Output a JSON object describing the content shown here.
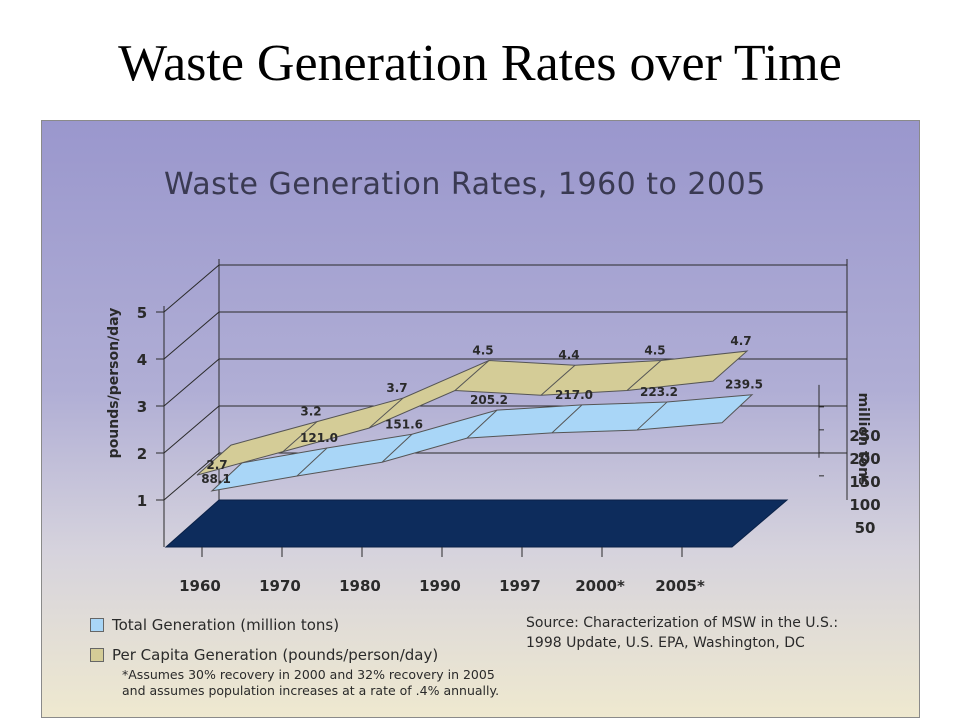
{
  "slide_title": "Waste Generation Rates over Time",
  "chart_data": {
    "type": "area",
    "title": "Waste Generation Rates, 1960 to 2005",
    "categories": [
      "1960",
      "1970",
      "1980",
      "1990",
      "1997",
      "2000*",
      "2005*"
    ],
    "series": [
      {
        "name": "Total Generation (million tons)",
        "axis": "right",
        "values": [
          88.1,
          121.0,
          151.6,
          205.2,
          217.0,
          223.2,
          239.5
        ],
        "labels": [
          "88.1",
          "121.0",
          "151.6",
          "205.2",
          "217.0",
          "223.2",
          "239.5"
        ],
        "color": "#a9d6f7"
      },
      {
        "name": "Per Capita Generation (pounds/person/day)",
        "axis": "left",
        "values": [
          2.7,
          3.2,
          3.7,
          4.5,
          4.4,
          4.5,
          4.7
        ],
        "labels": [
          "2.7",
          "3.2",
          "3.7",
          "4.5",
          "4.4",
          "4.5",
          "4.7"
        ],
        "color": "#d4cc97"
      }
    ],
    "left_axis": {
      "label": "pounds/person/day",
      "ticks": [
        "1",
        "2",
        "3",
        "4",
        "5"
      ],
      "range": [
        0,
        5
      ]
    },
    "right_axis": {
      "label": "million tons",
      "ticks": [
        "50",
        "100",
        "150",
        "200",
        "250"
      ]
    },
    "legend": [
      "Total Generation (million tons)",
      "Per Capita Generation (pounds/person/day)"
    ],
    "legend_position": "bottom-left",
    "grid": true,
    "view": "3d",
    "colors": {
      "floor": "#0d2c5c",
      "bg_top": "#9a97cd",
      "bg_bottom": "#efe9cf"
    }
  },
  "source_text": [
    "Source: Characterization of MSW in the U.S.:",
    "1998 Update, U.S. EPA, Washington, DC"
  ],
  "footnote": [
    "*Assumes 30% recovery in 2000 and 32% recovery in 2005",
    "and assumes population increases at a rate of .4% annually."
  ]
}
